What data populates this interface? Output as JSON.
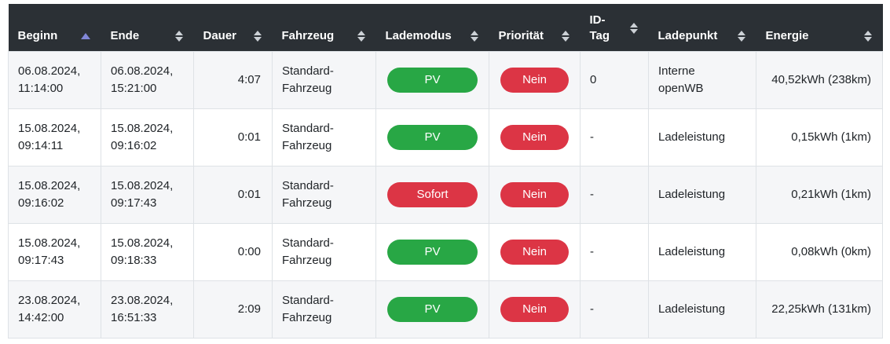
{
  "colors": {
    "header_bg": "#2b3035",
    "sort_active_arrow": "#8187d8",
    "sort_inactive_arrow": "#ccd1d6",
    "badge_green": "#28a745",
    "badge_red": "#dc3545",
    "stripe_row_bg": "#f5f6f8"
  },
  "badge_colors": {
    "PV": "#28a745",
    "Sofort": "#dc3545",
    "Nein": "#dc3545"
  },
  "table": {
    "columns": [
      {
        "key": "beginn",
        "label": "Beginn",
        "sort_state": "asc",
        "align": "left",
        "type": "text"
      },
      {
        "key": "ende",
        "label": "Ende",
        "sort_state": "both",
        "align": "left",
        "type": "text"
      },
      {
        "key": "dauer",
        "label": "Dauer",
        "sort_state": "both",
        "align": "right",
        "type": "text"
      },
      {
        "key": "fahrzeug",
        "label": "Fahrzeug",
        "sort_state": "both",
        "align": "left",
        "type": "text"
      },
      {
        "key": "lademodus",
        "label": "Lademodus",
        "sort_state": "both",
        "align": "left",
        "type": "badge"
      },
      {
        "key": "prioritaet",
        "label": "Priorität",
        "sort_state": "both",
        "align": "left",
        "type": "badge"
      },
      {
        "key": "id_tag",
        "label": "ID-Tag",
        "sort_state": "both",
        "align": "left",
        "type": "text"
      },
      {
        "key": "ladepunkt",
        "label": "Ladepunkt",
        "sort_state": "both",
        "align": "left",
        "type": "text"
      },
      {
        "key": "energie",
        "label": "Energie",
        "sort_state": "both",
        "align": "right",
        "type": "text"
      }
    ],
    "rows": [
      {
        "beginn": "06.08.2024, 11:14:00",
        "ende": "06.08.2024, 15:21:00",
        "dauer": "4:07",
        "fahrzeug": "Standard-Fahrzeug",
        "lademodus": "PV",
        "prioritaet": "Nein",
        "id_tag": "0",
        "ladepunkt": "Interne openWB",
        "energie": "40,52kWh (238km)"
      },
      {
        "beginn": "15.08.2024, 09:14:11",
        "ende": "15.08.2024, 09:16:02",
        "dauer": "0:01",
        "fahrzeug": "Standard-Fahrzeug",
        "lademodus": "PV",
        "prioritaet": "Nein",
        "id_tag": "-",
        "ladepunkt": "Ladeleistung",
        "energie": "0,15kWh (1km)"
      },
      {
        "beginn": "15.08.2024, 09:16:02",
        "ende": "15.08.2024, 09:17:43",
        "dauer": "0:01",
        "fahrzeug": "Standard-Fahrzeug",
        "lademodus": "Sofort",
        "prioritaet": "Nein",
        "id_tag": "-",
        "ladepunkt": "Ladeleistung",
        "energie": "0,21kWh (1km)"
      },
      {
        "beginn": "15.08.2024, 09:17:43",
        "ende": "15.08.2024, 09:18:33",
        "dauer": "0:00",
        "fahrzeug": "Standard-Fahrzeug",
        "lademodus": "PV",
        "prioritaet": "Nein",
        "id_tag": "-",
        "ladepunkt": "Ladeleistung",
        "energie": "0,08kWh (0km)"
      },
      {
        "beginn": "23.08.2024, 14:42:00",
        "ende": "23.08.2024, 16:51:33",
        "dauer": "2:09",
        "fahrzeug": "Standard-Fahrzeug",
        "lademodus": "PV",
        "prioritaet": "Nein",
        "id_tag": "-",
        "ladepunkt": "Ladeleistung",
        "energie": "22,25kWh (131km)"
      }
    ]
  }
}
